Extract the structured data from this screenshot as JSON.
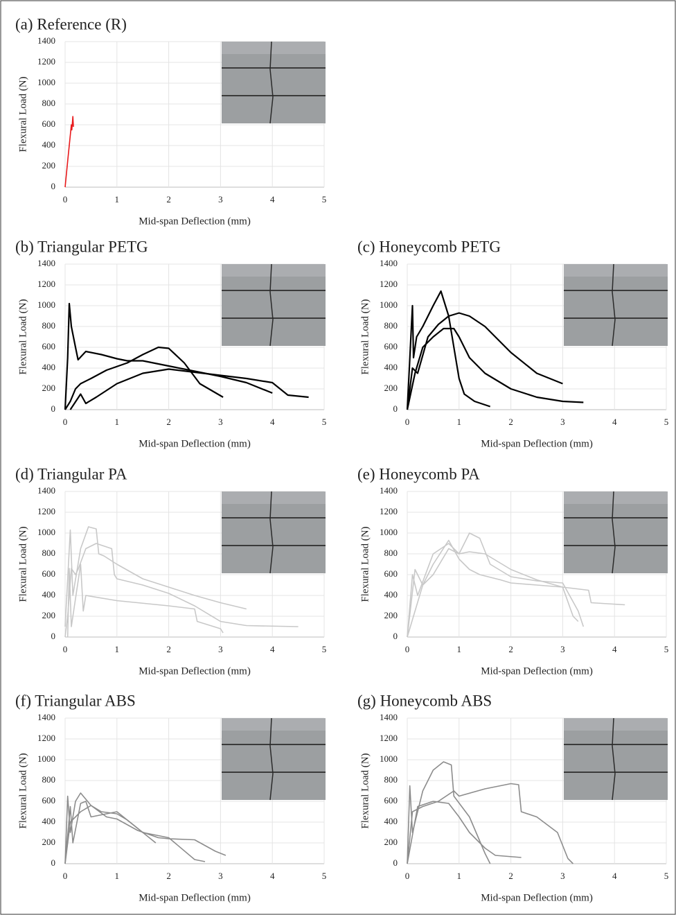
{
  "chart_data": [
    {
      "type": "line",
      "title": "(a) Reference (R)",
      "x_label": "Mid-span Deflection (mm)",
      "y_label": "Flexural Load (N)",
      "xlim": [
        0,
        5
      ],
      "ylim": [
        0,
        1400
      ],
      "xticks": [
        0,
        1,
        2,
        3,
        4,
        5
      ],
      "yticks": [
        0,
        200,
        400,
        600,
        800,
        1000,
        1200,
        1400
      ],
      "grid": true,
      "series": [
        {
          "color": "#e8191b",
          "x": [
            0,
            0.05,
            0.1,
            0.12,
            0.13,
            0.15,
            0.16
          ],
          "values": [
            0,
            250,
            500,
            600,
            550,
            680,
            580
          ]
        }
      ]
    },
    {
      "type": "line",
      "title": "(b) Triangular PETG",
      "x_label": "Mid-span Deflection (mm)",
      "y_label": "Flexural Load (N)",
      "xlim": [
        0,
        5
      ],
      "ylim": [
        0,
        1400
      ],
      "xticks": [
        0,
        1,
        2,
        3,
        4,
        5
      ],
      "yticks": [
        0,
        200,
        400,
        600,
        800,
        1000,
        1200,
        1400
      ],
      "grid": true,
      "series": [
        {
          "color": "#000000",
          "x": [
            0,
            0.05,
            0.08,
            0.12,
            0.2,
            0.25,
            0.4,
            0.7,
            1.0,
            1.2,
            1.5,
            2.0,
            2.5,
            3.0,
            3.5,
            4.0
          ],
          "values": [
            0,
            500,
            1020,
            800,
            600,
            480,
            560,
            530,
            490,
            470,
            470,
            420,
            370,
            320,
            260,
            160
          ]
        },
        {
          "color": "#000000",
          "x": [
            0,
            0.1,
            0.2,
            0.3,
            0.5,
            0.8,
            1.2,
            1.5,
            1.8,
            2.0,
            2.3,
            2.6,
            3.05
          ],
          "values": [
            0,
            80,
            200,
            250,
            300,
            380,
            450,
            530,
            600,
            590,
            450,
            250,
            120
          ]
        },
        {
          "color": "#000000",
          "x": [
            0.1,
            0.3,
            0.4,
            0.6,
            1.0,
            1.5,
            2.0,
            2.5,
            3.0,
            3.5,
            4.0,
            4.3,
            4.7
          ],
          "values": [
            0,
            150,
            60,
            120,
            250,
            350,
            390,
            360,
            330,
            300,
            260,
            140,
            120
          ]
        }
      ]
    },
    {
      "type": "line",
      "title": "(c) Honeycomb PETG",
      "x_label": "Mid-span Deflection (mm)",
      "y_label": "Flexural Load (N)",
      "xlim": [
        0,
        5
      ],
      "ylim": [
        0,
        1400
      ],
      "xticks": [
        0,
        1,
        2,
        3,
        4,
        5
      ],
      "yticks": [
        0,
        200,
        400,
        600,
        800,
        1000,
        1200,
        1400
      ],
      "grid": true,
      "series": [
        {
          "color": "#000000",
          "x": [
            0,
            0.1,
            0.12,
            0.18,
            0.3,
            0.5,
            0.65,
            0.8,
            0.9,
            1.0,
            1.1,
            1.3,
            1.6
          ],
          "values": [
            0,
            1000,
            500,
            700,
            800,
            1000,
            1140,
            900,
            600,
            300,
            150,
            80,
            30
          ]
        },
        {
          "color": "#000000",
          "x": [
            0,
            0.1,
            0.2,
            0.4,
            0.6,
            0.8,
            1.0,
            1.2,
            1.5,
            2.0,
            2.5,
            3.0
          ],
          "values": [
            0,
            400,
            350,
            700,
            820,
            900,
            930,
            900,
            800,
            550,
            350,
            250
          ]
        },
        {
          "color": "#000000",
          "x": [
            0,
            0.15,
            0.3,
            0.5,
            0.7,
            0.9,
            1.0,
            1.2,
            1.5,
            2.0,
            2.5,
            3.0,
            3.4
          ],
          "values": [
            0,
            350,
            600,
            700,
            780,
            780,
            700,
            500,
            350,
            200,
            120,
            80,
            70
          ]
        }
      ]
    },
    {
      "type": "line",
      "title": "(d) Triangular PA",
      "x_label": "Mid-span Deflection (mm)",
      "y_label": "Flexural Load (N)",
      "xlim": [
        0,
        5
      ],
      "ylim": [
        0,
        1400
      ],
      "xticks": [
        0,
        1,
        2,
        3,
        4,
        5
      ],
      "yticks": [
        0,
        200,
        400,
        600,
        800,
        1000,
        1200,
        1400
      ],
      "grid": true,
      "series": [
        {
          "color": "#c8c8c8",
          "x": [
            0,
            0.1,
            0.15,
            0.3,
            0.45,
            0.6,
            0.65,
            0.75,
            1.0,
            1.5,
            2.0,
            2.5,
            3.0,
            3.5
          ],
          "values": [
            100,
            1030,
            400,
            850,
            1060,
            1040,
            800,
            780,
            700,
            560,
            480,
            400,
            330,
            270
          ]
        },
        {
          "color": "#c8c8c8",
          "x": [
            0,
            0.05,
            0.12,
            0.2,
            0.25,
            0.4,
            0.6,
            0.9,
            0.95,
            1.0,
            1.5,
            2.0,
            2.5,
            3.0,
            3.5,
            4.5
          ],
          "values": [
            0,
            200,
            660,
            600,
            650,
            850,
            900,
            850,
            600,
            560,
            500,
            420,
            300,
            150,
            110,
            100
          ]
        },
        {
          "color": "#c8c8c8",
          "x": [
            0.05,
            0.08,
            0.12,
            0.3,
            0.35,
            0.4,
            1.0,
            2.0,
            2.5,
            2.55,
            3.0,
            3.05
          ],
          "values": [
            0,
            660,
            100,
            700,
            250,
            400,
            350,
            300,
            270,
            150,
            80,
            40
          ]
        }
      ]
    },
    {
      "type": "line",
      "title": "(e) Honeycomb PA",
      "x_label": "Mid-span Deflection (mm)",
      "y_label": "Flexural Load (N)",
      "xlim": [
        0,
        5
      ],
      "ylim": [
        0,
        1400
      ],
      "xticks": [
        0,
        1,
        2,
        3,
        4,
        5
      ],
      "yticks": [
        0,
        200,
        400,
        600,
        800,
        1000,
        1200,
        1400
      ],
      "grid": true,
      "series": [
        {
          "color": "#c8c8c8",
          "x": [
            0,
            0.1,
            0.2,
            0.5,
            0.8,
            1.0,
            1.2,
            1.4,
            1.6,
            2.0,
            2.5,
            3.0,
            3.3,
            3.4
          ],
          "values": [
            0,
            600,
            400,
            800,
            900,
            800,
            1000,
            950,
            700,
            580,
            540,
            520,
            250,
            100
          ]
        },
        {
          "color": "#c8c8c8",
          "x": [
            0,
            0.3,
            0.5,
            0.8,
            1.0,
            1.2,
            1.5,
            2.0,
            2.5,
            3.0,
            3.5,
            3.55,
            4.2
          ],
          "values": [
            0,
            500,
            600,
            850,
            800,
            820,
            800,
            650,
            550,
            480,
            450,
            330,
            310
          ]
        },
        {
          "color": "#c8c8c8",
          "x": [
            0,
            0.15,
            0.3,
            0.5,
            0.8,
            1.0,
            1.2,
            1.4,
            1.8,
            2.0,
            2.5,
            3.0,
            3.2,
            3.3
          ],
          "values": [
            0,
            650,
            500,
            700,
            930,
            750,
            650,
            600,
            550,
            520,
            500,
            480,
            200,
            150
          ]
        }
      ]
    },
    {
      "type": "line",
      "title": "(f) Triangular ABS",
      "x_label": "Mid-span Deflection (mm)",
      "y_label": "Flexural Load (N)",
      "xlim": [
        0,
        5
      ],
      "ylim": [
        0,
        1400
      ],
      "xticks": [
        0,
        1,
        2,
        3,
        4,
        5
      ],
      "yticks": [
        0,
        200,
        400,
        600,
        800,
        1000,
        1200,
        1400
      ],
      "grid": true,
      "series": [
        {
          "color": "#8c8c8c",
          "x": [
            0,
            0.05,
            0.1,
            0.2,
            0.3,
            0.5,
            0.7,
            1.0,
            1.2,
            1.5,
            1.75
          ],
          "values": [
            0,
            650,
            300,
            600,
            680,
            560,
            500,
            480,
            420,
            300,
            200
          ]
        },
        {
          "color": "#8c8c8c",
          "x": [
            0,
            0.1,
            0.15,
            0.3,
            0.4,
            0.5,
            1.0,
            1.5,
            2.0,
            2.5,
            2.7
          ],
          "values": [
            0,
            550,
            200,
            580,
            600,
            450,
            500,
            300,
            250,
            40,
            20
          ]
        },
        {
          "color": "#8c8c8c",
          "x": [
            0,
            0.1,
            0.3,
            0.5,
            0.8,
            1.0,
            1.4,
            1.8,
            2.0,
            2.5,
            2.9,
            3.1
          ],
          "values": [
            0,
            400,
            500,
            560,
            450,
            430,
            320,
            250,
            240,
            230,
            120,
            80
          ]
        }
      ]
    },
    {
      "type": "line",
      "title": "(g) Honeycomb ABS",
      "x_label": "Mid-span Deflection (mm)",
      "y_label": "Flexural Load (N)",
      "xlim": [
        0,
        5
      ],
      "ylim": [
        0,
        1400
      ],
      "xticks": [
        0,
        1,
        2,
        3,
        4,
        5
      ],
      "yticks": [
        0,
        200,
        400,
        600,
        800,
        1000,
        1200,
        1400
      ],
      "grid": true,
      "series": [
        {
          "color": "#8c8c8c",
          "x": [
            0,
            0.05,
            0.1,
            0.3,
            0.5,
            0.7,
            0.85,
            0.9,
            1.2,
            1.5,
            1.6
          ],
          "values": [
            0,
            750,
            300,
            700,
            900,
            980,
            950,
            650,
            450,
            100,
            0
          ]
        },
        {
          "color": "#8c8c8c",
          "x": [
            0,
            0.1,
            0.3,
            0.6,
            0.9,
            1.0,
            1.5,
            2.0,
            2.15,
            2.2,
            2.5,
            2.9,
            3.1,
            3.2
          ],
          "values": [
            0,
            500,
            550,
            600,
            700,
            650,
            720,
            770,
            760,
            500,
            450,
            300,
            50,
            0
          ]
        },
        {
          "color": "#8c8c8c",
          "x": [
            0,
            0.2,
            0.5,
            0.8,
            1.0,
            1.2,
            1.5,
            1.7,
            2.2
          ],
          "values": [
            0,
            550,
            600,
            580,
            450,
            300,
            150,
            80,
            60
          ]
        }
      ]
    }
  ]
}
